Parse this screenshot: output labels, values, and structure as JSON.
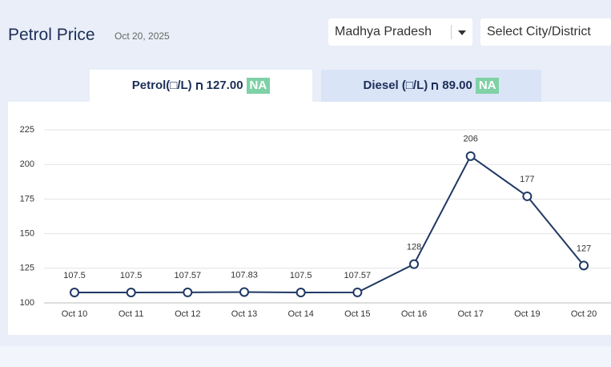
{
  "header": {
    "title": "Petrol Price",
    "date": "Oct 20, 2025",
    "state": "Madhya Pradesh",
    "city": "Select City/District"
  },
  "tabs": [
    {
      "label": "Petrol(□/L)",
      "price": "127.00",
      "badge": "NA"
    },
    {
      "label": "Diesel (□/L)",
      "price": "89.00",
      "badge": "NA"
    }
  ],
  "chart_data": {
    "type": "line",
    "categories": [
      "Oct 10",
      "Oct 11",
      "Oct 12",
      "Oct 13",
      "Oct 14",
      "Oct 15",
      "Oct 16",
      "Oct 17",
      "Oct 19",
      "Oct 20"
    ],
    "values": [
      107.5,
      107.5,
      107.57,
      107.83,
      107.5,
      107.57,
      128,
      206,
      177,
      127
    ],
    "color": "#1f3864",
    "ylim": [
      100,
      225
    ],
    "yticks": [
      100,
      125,
      150,
      175,
      200,
      225
    ],
    "grid": true
  }
}
